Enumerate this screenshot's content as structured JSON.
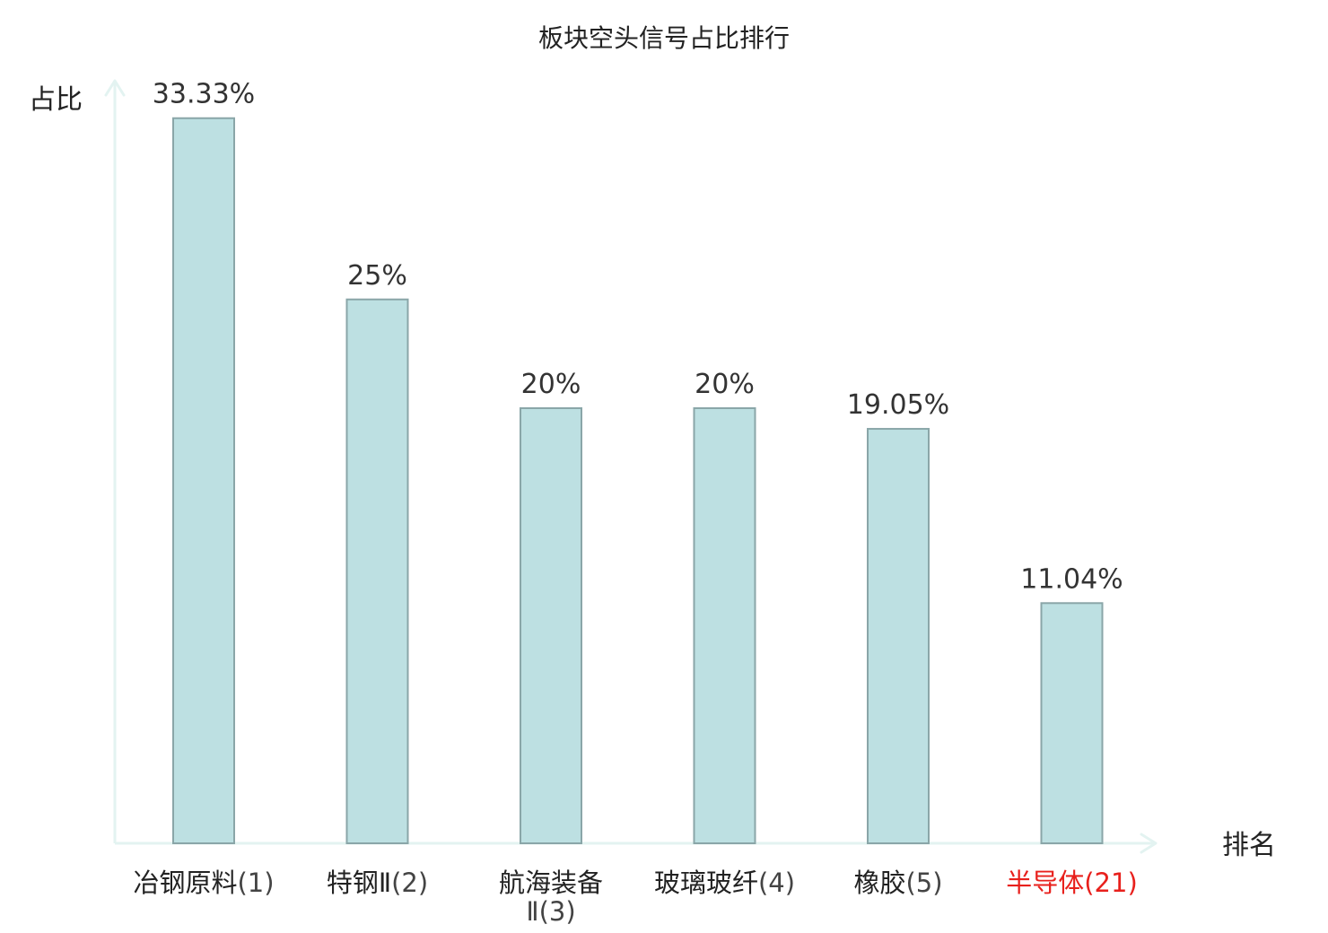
{
  "chart_data": {
    "type": "bar",
    "title": "板块空头信号占比排行",
    "ylabel": "占比",
    "xlabel": "排名",
    "ylim": [
      0,
      35
    ],
    "grid": false,
    "legend": "none",
    "categories": [
      {
        "name": "冶钢原料",
        "rank": "(1)",
        "highlight": false
      },
      {
        "name": "特钢Ⅱ",
        "rank": "(2)",
        "highlight": false
      },
      {
        "name": "航海装备",
        "rank": "Ⅱ(3)",
        "highlight": false,
        "wrap": true
      },
      {
        "name": "玻璃玻纤",
        "rank": "(4)",
        "highlight": false
      },
      {
        "name": "橡胶",
        "rank": "(5)",
        "highlight": false
      },
      {
        "name": "半导体",
        "rank": "(21)",
        "highlight": true
      }
    ],
    "values": [
      33.33,
      25,
      20,
      20,
      19.05,
      11.04
    ],
    "value_labels": [
      "33.33%",
      "25%",
      "20%",
      "20%",
      "19.05%",
      "11.04%"
    ],
    "colors": {
      "bar_fill": "#bde0e2",
      "bar_stroke": "#8aa6a8",
      "axis": "#e3f3f1",
      "text": "#222222",
      "rank_text": "#444444",
      "highlight": "#e8201c"
    }
  }
}
